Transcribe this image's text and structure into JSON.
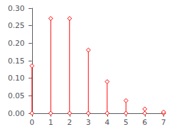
{
  "chart_data": {
    "type": "stem",
    "x": [
      0,
      1,
      2,
      3,
      4,
      5,
      6,
      7
    ],
    "values": [
      0.1353352832366127,
      0.2706705664732254,
      0.2706705664732254,
      0.18044704431548358,
      0.09022352215774179,
      0.036089408863096716,
      0.012029802954365572,
      0.003437086558390163
    ],
    "color": "#ff0000",
    "marker": "diamond",
    "xlim": [
      -0.1,
      7.1
    ],
    "ylim": [
      0,
      0.3
    ],
    "xticks": [
      0,
      1,
      2,
      3,
      4,
      5,
      6,
      7
    ],
    "yticks": [
      {
        "value": 0,
        "label": "0.00"
      },
      0.05,
      {
        "value": 0.1,
        "label": "0.10"
      },
      0.15,
      {
        "value": 0.2,
        "label": "0.20"
      },
      0.25,
      {
        "value": 0.3,
        "label": "0.30"
      }
    ],
    "grid": false
  }
}
